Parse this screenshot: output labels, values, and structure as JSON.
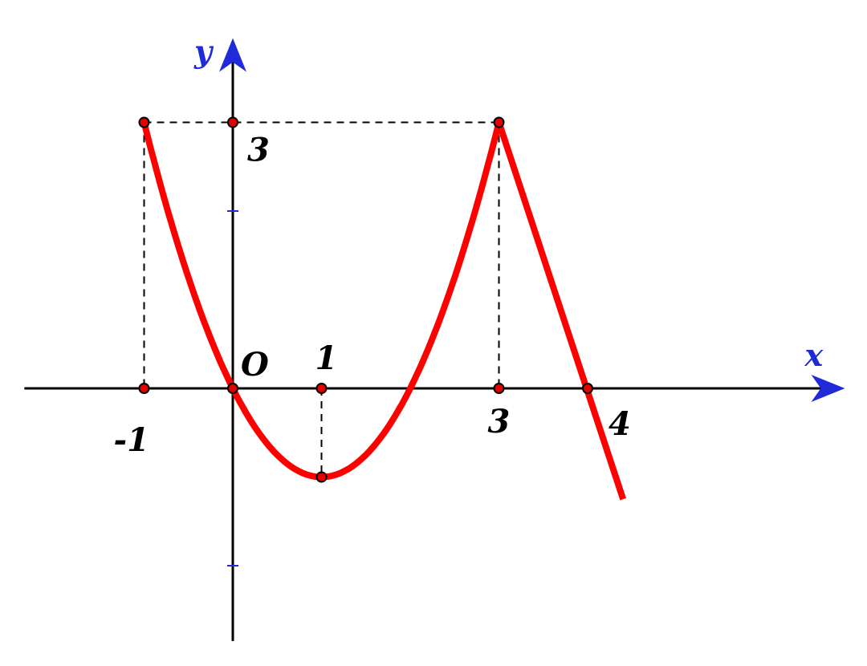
{
  "chart_data": {
    "type": "line",
    "xlabel": "x",
    "ylabel": "y",
    "xlim": [
      -2.35,
      6.9
    ],
    "ylim": [
      -2.85,
      3.95
    ],
    "grid": false,
    "origin_label": "O",
    "x_tick_labels": [
      {
        "x": -1,
        "label": "-1"
      },
      {
        "x": 1,
        "label": "1"
      },
      {
        "x": 3,
        "label": "3"
      },
      {
        "x": 4,
        "label": "4"
      }
    ],
    "y_tick_labels": [
      {
        "y": 3,
        "label": "3"
      }
    ],
    "x_ticks_unlabeled": [
      2
    ],
    "y_ticks_unlabeled": [
      2,
      -2
    ],
    "series": [
      {
        "x": [
          -1,
          -0.5,
          0,
          0.5,
          1,
          1.5,
          2,
          2.5,
          3,
          3.5,
          4,
          4.4
        ],
        "y": [
          3,
          1.25,
          0,
          -0.75,
          -1,
          -0.75,
          0,
          1.25,
          3,
          1.5,
          0,
          -1.25
        ]
      }
    ],
    "marked_points": [
      {
        "x": -1,
        "y": 3
      },
      {
        "x": 0,
        "y": 3
      },
      {
        "x": 3,
        "y": 3
      },
      {
        "x": -1,
        "y": 0
      },
      {
        "x": 0,
        "y": 0
      },
      {
        "x": 1,
        "y": 0
      },
      {
        "x": 3,
        "y": 0
      },
      {
        "x": 4,
        "y": 0
      },
      {
        "x": 1,
        "y": -1
      }
    ],
    "guide_lines": [
      {
        "from": [
          -1,
          3
        ],
        "to": [
          3,
          3
        ]
      },
      {
        "from": [
          -1,
          3
        ],
        "to": [
          -1,
          0
        ]
      },
      {
        "from": [
          3,
          3
        ],
        "to": [
          3,
          0
        ]
      },
      {
        "from": [
          1,
          0
        ],
        "to": [
          1,
          -1
        ]
      }
    ],
    "colors": {
      "curve": "#ff0000",
      "axis_arrow": "#1f2bd9",
      "axis_line": "#000000",
      "point_fill": "#e60000",
      "point_stroke": "#000000"
    }
  }
}
